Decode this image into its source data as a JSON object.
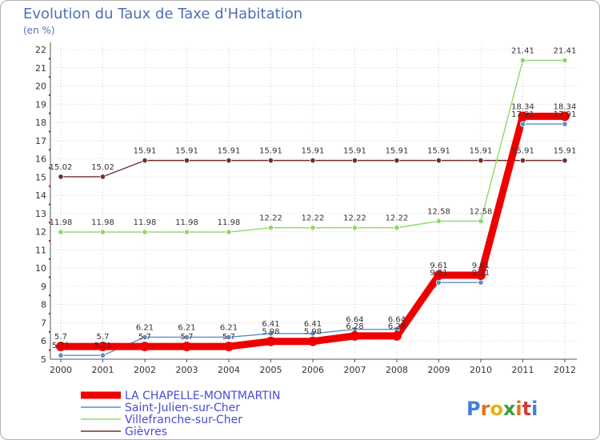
{
  "header": {
    "title": "Evolution du Taux de Taxe d'Habitation",
    "unit": "(en %)"
  },
  "logo": {
    "text": "Proxiti",
    "letter_colors": [
      "#3f7fd8",
      "#e0731a",
      "#e2b41b",
      "#3f9c3f",
      "#e0731a",
      "#d23b3b",
      "#3f7fd8"
    ]
  },
  "chart_data": {
    "type": "line",
    "title": "Evolution du Taux de Taxe d'Habitation",
    "ylabel": "(en %)",
    "ylim": [
      5,
      22
    ],
    "yticks": [
      5,
      6,
      7,
      8,
      9,
      10,
      11,
      12,
      13,
      14,
      15,
      16,
      17,
      18,
      19,
      20,
      21,
      22
    ],
    "categories": [
      "2000",
      "2001",
      "2002",
      "2003",
      "2004",
      "2005",
      "2006",
      "2007",
      "2008",
      "2009",
      "2010",
      "2011",
      "2012"
    ],
    "series": [
      {
        "name": "Gièvres",
        "color": "#6e2e2e",
        "values": [
          15.02,
          15.02,
          15.91,
          15.91,
          15.91,
          15.91,
          15.91,
          15.91,
          15.91,
          15.91,
          15.91,
          15.91,
          15.91
        ],
        "labels": [
          "15.02",
          "15.02",
          "15.91",
          "15.91",
          "15.91",
          "15.91",
          "15.91",
          "15.91",
          "15.91",
          "15.91",
          "15.91",
          "15.91",
          "15.91"
        ]
      },
      {
        "name": "Villefranche-sur-Cher",
        "color": "#8fd86a",
        "values": [
          11.98,
          11.98,
          11.98,
          11.98,
          11.98,
          12.22,
          12.22,
          12.22,
          12.22,
          12.58,
          12.58,
          21.41,
          21.41
        ],
        "labels": [
          "11.98",
          "11.98",
          "11.98",
          "11.98",
          "11.98",
          "12.22",
          "12.22",
          "12.22",
          "12.22",
          "12.58",
          "12.58",
          "21.41",
          "21.41"
        ]
      },
      {
        "name": "Saint-Julien-sur-Cher",
        "color": "#5b8fc5",
        "values": [
          5.21,
          5.21,
          6.21,
          6.21,
          6.21,
          6.41,
          6.41,
          6.64,
          6.64,
          9.21,
          9.21,
          17.91,
          17.91
        ],
        "labels": [
          "5.21",
          "5.21",
          "6.21",
          "6.21",
          "6.21",
          "6.41",
          "6.41",
          "6.64",
          "6.64",
          "9.21",
          "9.21",
          "17.91",
          "17.91"
        ]
      },
      {
        "name": "LA CHAPELLE-MONTMARTIN",
        "color": "#ee0000",
        "values": [
          5.7,
          5.7,
          5.7,
          5.7,
          5.7,
          5.98,
          5.98,
          6.28,
          6.28,
          9.61,
          9.61,
          18.34,
          18.34
        ],
        "labels": [
          "5.7",
          "5.7",
          "5.7",
          "5.7",
          "5.7",
          "5.98",
          "5.98",
          "6.28",
          "6.28",
          "9.61",
          "9.61",
          "18.34",
          "18.34"
        ]
      }
    ],
    "legend_order": [
      "LA CHAPELLE-MONTMARTIN",
      "Saint-Julien-sur-Cher",
      "Villefranche-sur-Cher",
      "Gièvres"
    ]
  }
}
